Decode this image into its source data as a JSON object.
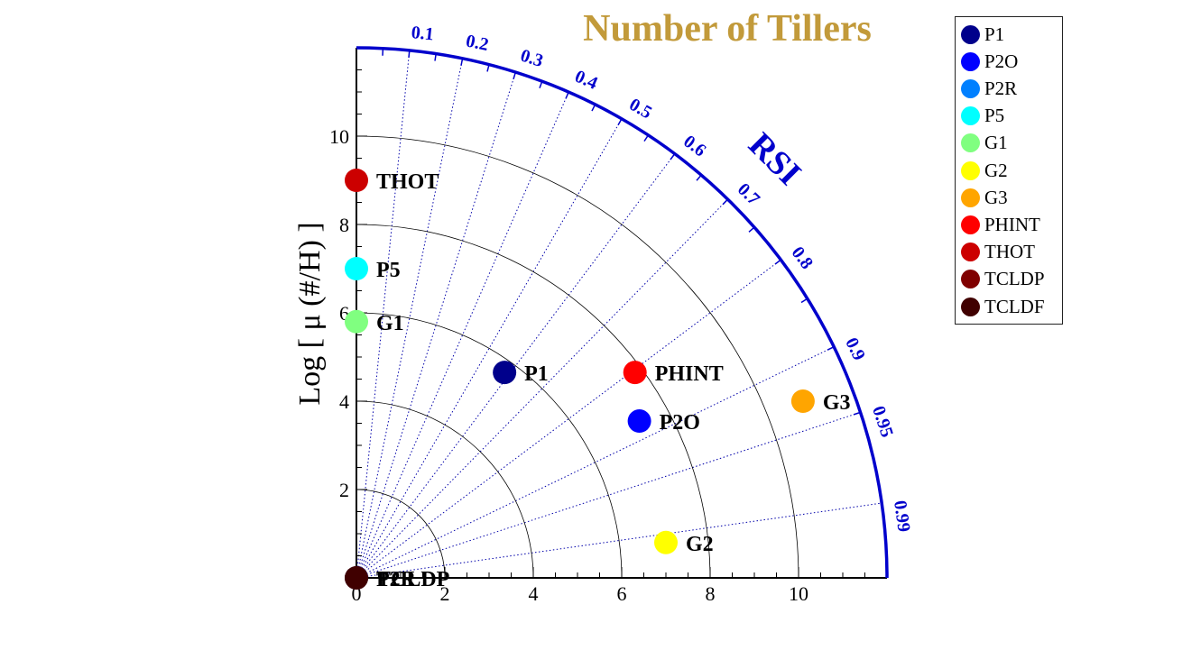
{
  "chart_data": {
    "type": "scatter",
    "subtype": "taylor-polar",
    "title": "Number of Tillers",
    "ylabel": "Log [ μ (#/H) ]",
    "arc_label": "RSI",
    "axis_range": [
      0,
      12
    ],
    "axis_ticks": [
      0,
      2,
      4,
      6,
      8,
      10
    ],
    "axis_tick_labels": [
      "0",
      "2",
      "4",
      "6",
      "8",
      "10"
    ],
    "minor_tick_step": 0.5,
    "circle_radii": [
      2,
      4,
      6,
      8,
      10
    ],
    "rsi_ticks": [
      0.1,
      0.2,
      0.3,
      0.4,
      0.5,
      0.6,
      0.7,
      0.8,
      0.9,
      0.95,
      0.99
    ],
    "rsi_tick_labels": [
      "0.1",
      "0.2",
      "0.3",
      "0.4",
      "0.5",
      "0.6",
      "0.7",
      "0.8",
      "0.9",
      "0.95",
      "0.99"
    ],
    "grid": true,
    "legend_position": "top-right",
    "series": [
      {
        "name": "P1",
        "x": 3.35,
        "y": 4.65,
        "color": "#00008b",
        "label": "P1"
      },
      {
        "name": "P2O",
        "x": 6.4,
        "y": 3.55,
        "color": "#0000ff",
        "label": "P2O"
      },
      {
        "name": "P2R",
        "x": 0.0,
        "y": 0.0,
        "color": "#0080ff",
        "label": "P2R"
      },
      {
        "name": "P5",
        "x": 0.0,
        "y": 7.0,
        "color": "#00ffff",
        "label": "P5"
      },
      {
        "name": "G1",
        "x": 0.0,
        "y": 5.8,
        "color": "#80ff80",
        "label": "G1"
      },
      {
        "name": "G2",
        "x": 7.0,
        "y": 0.8,
        "color": "#ffff00",
        "label": "G2"
      },
      {
        "name": "G3",
        "x": 10.1,
        "y": 4.0,
        "color": "#ffa500",
        "label": "G3"
      },
      {
        "name": "PHINT",
        "x": 6.3,
        "y": 4.65,
        "color": "#ff0000",
        "label": "PHINT"
      },
      {
        "name": "THOT",
        "x": 0.0,
        "y": 9.0,
        "color": "#cc0000",
        "label": "THOT"
      },
      {
        "name": "TCLDP",
        "x": 0.0,
        "y": 0.0,
        "color": "#800000",
        "label": "TCLDP"
      },
      {
        "name": "TCLDF",
        "x": 0.0,
        "y": 0.0,
        "color": "#400000",
        "label": ""
      }
    ]
  }
}
